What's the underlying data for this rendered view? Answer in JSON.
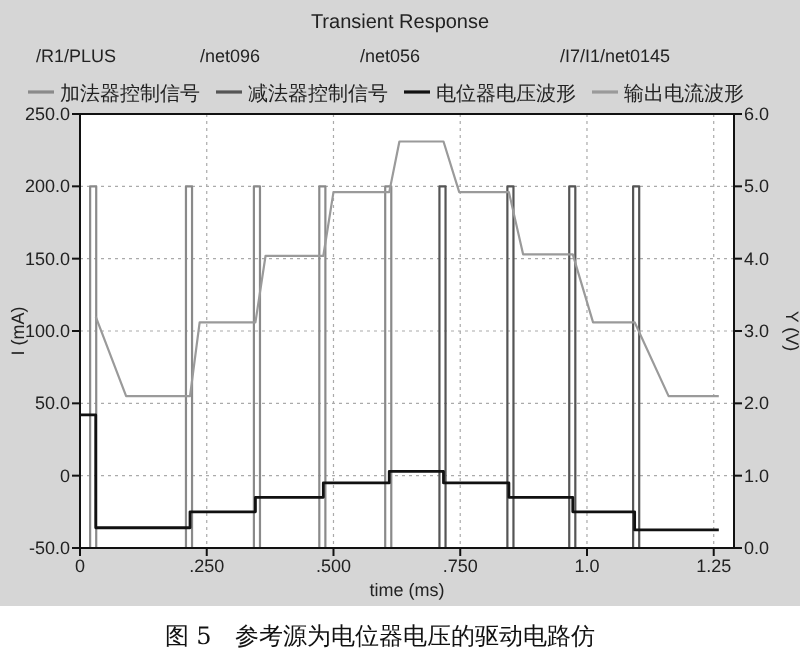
{
  "chart_data": {
    "type": "line",
    "title": "Transient Response",
    "xlabel": "time (ms)",
    "ylabel": "I (mA)",
    "y2label": "Y (V)",
    "annotations": [
      "/R1/PLUS",
      "/net096",
      "/net056",
      "/I7/I1/net0145",
      "图 5　参考源为电位器电压的驱动电路仿"
    ],
    "xlim": [
      0,
      1.29
    ],
    "xticks": [
      0,
      {
        "value": 0.25,
        "label": ".250"
      },
      {
        "value": 0.5,
        "label": ".500"
      },
      {
        "value": 0.75,
        "label": ".750"
      },
      {
        "value": 1.0,
        "label": "1.0"
      },
      1.25
    ],
    "ylim": [
      -50,
      250
    ],
    "yticks": [
      {
        "value": -50,
        "label": "-50.0"
      },
      0,
      {
        "value": 50,
        "label": "50.0"
      },
      {
        "value": 100,
        "label": "100.0"
      },
      {
        "value": 150,
        "label": "150.0"
      },
      {
        "value": 200,
        "label": "200.0"
      },
      {
        "value": 250,
        "label": "250.0"
      }
    ],
    "y2lim": [
      0,
      6
    ],
    "y2ticks": [
      {
        "value": 0,
        "label": "0.0"
      },
      {
        "value": 1,
        "label": "1.0"
      },
      {
        "value": 2,
        "label": "2.0"
      },
      {
        "value": 3,
        "label": "3.0"
      },
      {
        "value": 4,
        "label": "4.0"
      },
      {
        "value": 5,
        "label": "5.0"
      },
      {
        "value": 6,
        "label": "6.0"
      }
    ],
    "grid": true,
    "legend": "top",
    "series": [
      {
        "name": "加法器控制信号",
        "color": "#8a8a8a",
        "axis": "y2",
        "x": [
          0,
          0.02,
          0.02,
          0.032,
          0.032,
          0.209,
          0.209,
          0.221,
          0.221,
          0.343,
          0.343,
          0.355,
          0.355,
          0.472,
          0.472,
          0.484,
          0.484,
          0.602,
          0.602,
          0.614,
          0.614,
          1.26
        ],
        "values": [
          0,
          0,
          5,
          5,
          0,
          0,
          5,
          5,
          0,
          0,
          5,
          5,
          0,
          0,
          5,
          5,
          0,
          0,
          5,
          5,
          0,
          0
        ]
      },
      {
        "name": "减法器控制信号",
        "color": "#555555",
        "axis": "y2",
        "x": [
          0,
          0.709,
          0.709,
          0.721,
          0.721,
          0.843,
          0.843,
          0.855,
          0.855,
          0.965,
          0.965,
          0.977,
          0.977,
          1.091,
          1.091,
          1.103,
          1.103,
          1.26
        ],
        "values": [
          0,
          0,
          5,
          5,
          0,
          0,
          5,
          5,
          0,
          0,
          5,
          5,
          0,
          0,
          5,
          5,
          0,
          0
        ]
      },
      {
        "name": "电位器电压波形",
        "color": "#111111",
        "axis": "y2",
        "x": [
          0,
          0.031,
          0.031,
          0.217,
          0.217,
          0.346,
          0.346,
          0.48,
          0.48,
          0.61,
          0.61,
          0.717,
          0.717,
          0.846,
          0.846,
          0.972,
          0.972,
          1.094,
          1.094,
          1.26
        ],
        "values": [
          1.84,
          1.84,
          0.28,
          0.28,
          0.5,
          0.5,
          0.7,
          0.7,
          0.9,
          0.9,
          1.06,
          1.06,
          0.9,
          0.9,
          0.7,
          0.7,
          0.5,
          0.5,
          0.25,
          0.25
        ]
      },
      {
        "name": "输出电流波形",
        "color": "#9a9a9a",
        "x": [
          0.031,
          0.091,
          0.217,
          0.236,
          0.346,
          0.366,
          0.48,
          0.5,
          0.61,
          0.63,
          0.717,
          0.748,
          0.846,
          0.874,
          0.972,
          1.012,
          1.094,
          1.161,
          1.26
        ],
        "values": [
          110,
          55,
          55,
          106,
          106,
          152,
          152,
          196,
          196,
          231,
          231,
          196,
          196,
          153,
          153,
          106,
          106,
          55,
          55
        ]
      }
    ]
  }
}
